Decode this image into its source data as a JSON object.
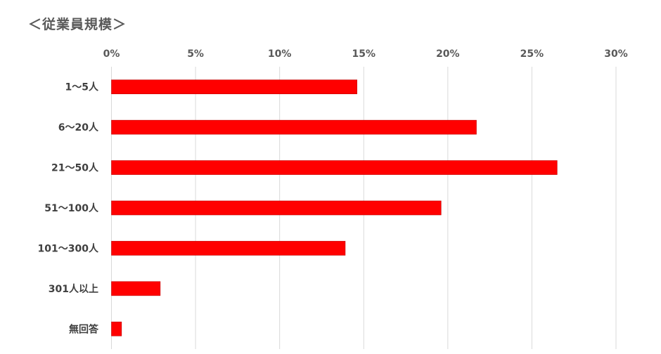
{
  "chart_data": {
    "type": "bar",
    "orientation": "horizontal",
    "title": "＜従業員規模＞",
    "categories": [
      "1～5人",
      "6～20人",
      "21～50人",
      "51～100人",
      "101～300人",
      "301人以上",
      "無回答"
    ],
    "values": [
      14.6,
      21.7,
      26.5,
      19.6,
      13.9,
      2.9,
      0.6
    ],
    "unit": "%",
    "xlim": [
      0,
      30
    ],
    "xticks": [
      "0%",
      "5%",
      "10%",
      "15%",
      "20%",
      "25%",
      "30%"
    ],
    "xaxis_position": "top",
    "grid": true,
    "legend": "none",
    "colors": {
      "bar": "#ff0000",
      "bar_border": "#c00000",
      "grid": "#d9d9d9"
    }
  }
}
